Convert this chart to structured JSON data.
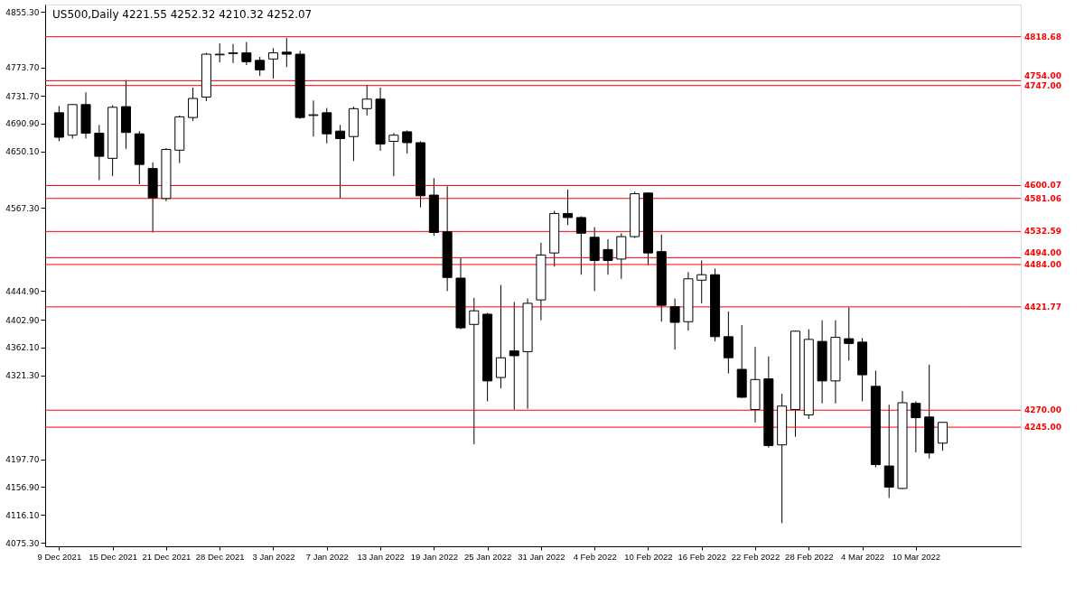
{
  "chart_data": {
    "type": "candlestick",
    "title": "US500,Daily  4221.55 4252.32 4210.32 4252.07",
    "categories": [
      "9 Dec 2021",
      null,
      null,
      null,
      "15 Dec 2021",
      null,
      null,
      null,
      "21 Dec 2021",
      null,
      null,
      null,
      "28 Dec 2021",
      null,
      null,
      null,
      "3 Jan 2022",
      null,
      null,
      null,
      "7 Jan 2022",
      null,
      null,
      null,
      "13 Jan 2022",
      null,
      null,
      null,
      "19 Jan 2022",
      null,
      null,
      null,
      "25 Jan 2022",
      null,
      null,
      null,
      "31 Jan 2022",
      null,
      null,
      null,
      "4 Feb 2022",
      null,
      null,
      null,
      "10 Feb 2022",
      null,
      null,
      null,
      "16 Feb 2022",
      null,
      null,
      null,
      "22 Feb 2022",
      null,
      null,
      null,
      "28 Feb 2022",
      null,
      null,
      null,
      "4 Mar 2022",
      null,
      null,
      null,
      "10 Mar 2022",
      null,
      null
    ],
    "ohlc": [
      [
        4707,
        4717,
        4665,
        4671
      ],
      [
        4674,
        4719,
        4669,
        4719
      ],
      [
        4719,
        4737,
        4669,
        4677
      ],
      [
        4677,
        4689,
        4608,
        4643
      ],
      [
        4640,
        4718,
        4614,
        4715
      ],
      [
        4716,
        4755,
        4654,
        4678
      ],
      [
        4676,
        4680,
        4602,
        4631
      ],
      [
        4625,
        4634,
        4531,
        4582
      ],
      [
        4581,
        4655,
        4577,
        4653
      ],
      [
        4652,
        4703,
        4633,
        4701
      ],
      [
        4700,
        4744,
        4695,
        4728
      ],
      [
        4730,
        4795,
        4724,
        4793
      ],
      [
        4792,
        4809,
        4781,
        4793
      ],
      [
        4794,
        4808,
        4780,
        4795
      ],
      [
        4795,
        4811,
        4777,
        4782
      ],
      [
        4784,
        4789,
        4761,
        4770
      ],
      [
        4786,
        4802,
        4757,
        4795
      ],
      [
        4796,
        4817,
        4774,
        4793
      ],
      [
        4793,
        4798,
        4698,
        4700
      ],
      [
        4703,
        4725,
        4672,
        4704
      ],
      [
        4707,
        4714,
        4662,
        4676
      ],
      [
        4680,
        4689,
        4581,
        4669
      ],
      [
        4672,
        4716,
        4636,
        4713
      ],
      [
        4713,
        4748,
        4703,
        4727
      ],
      [
        4727,
        4744,
        4651,
        4661
      ],
      [
        4665,
        4677,
        4614,
        4674
      ],
      [
        4679,
        4681,
        4647,
        4663
      ],
      [
        4663,
        4665,
        4568,
        4585
      ],
      [
        4586,
        4611,
        4526,
        4531
      ],
      [
        4532,
        4599,
        4445,
        4465
      ],
      [
        4464,
        4494,
        4389,
        4391
      ],
      [
        4396,
        4435,
        4220,
        4416
      ],
      [
        4411,
        4413,
        4283,
        4313
      ],
      [
        4318,
        4454,
        4302,
        4347
      ],
      [
        4357,
        4429,
        4271,
        4350
      ],
      [
        4356,
        4434,
        4272,
        4427
      ],
      [
        4432,
        4516,
        4402,
        4498
      ],
      [
        4501,
        4563,
        4481,
        4559
      ],
      [
        4559,
        4594,
        4542,
        4553
      ],
      [
        4553,
        4555,
        4469,
        4530
      ],
      [
        4524,
        4539,
        4445,
        4490
      ],
      [
        4506,
        4521,
        4469,
        4490
      ],
      [
        4492,
        4530,
        4463,
        4525
      ],
      [
        4525,
        4591,
        4523,
        4588
      ],
      [
        4589,
        4590,
        4483,
        4501
      ],
      [
        4503,
        4528,
        4400,
        4424
      ],
      [
        4422,
        4434,
        4359,
        4399
      ],
      [
        4400,
        4473,
        4387,
        4463
      ],
      [
        4461,
        4490,
        4427,
        4469
      ],
      [
        4469,
        4478,
        4371,
        4378
      ],
      [
        4378,
        4415,
        4324,
        4347
      ],
      [
        4330,
        4395,
        4288,
        4289
      ],
      [
        4271,
        4363,
        4252,
        4315
      ],
      [
        4316,
        4349,
        4215,
        4218
      ],
      [
        4219,
        4294,
        4104,
        4276
      ],
      [
        4271,
        4387,
        4231,
        4386
      ],
      [
        4263,
        4389,
        4257,
        4374
      ],
      [
        4371,
        4402,
        4280,
        4313
      ],
      [
        4313,
        4402,
        4280,
        4377
      ],
      [
        4375,
        4421,
        4343,
        4368
      ],
      [
        4370,
        4376,
        4283,
        4322
      ],
      [
        4305,
        4328,
        4186,
        4190
      ],
      [
        4188,
        4278,
        4141,
        4157
      ],
      [
        4155,
        4298,
        4154,
        4281
      ],
      [
        4280,
        4283,
        4208,
        4259
      ],
      [
        4260,
        4337,
        4199,
        4207
      ],
      [
        4221.55,
        4252.32,
        4210.32,
        4252.07
      ]
    ],
    "ylim": [
      4070,
      4866
    ],
    "yticks": [
      {
        "value": 4075.3,
        "label": "4075.30"
      },
      {
        "value": 4116.1,
        "label": "4116.10"
      },
      {
        "value": 4156.9,
        "label": "4156.90"
      },
      {
        "value": 4197.7,
        "label": "4197.70"
      },
      {
        "value": 4321.3,
        "label": "4321.30"
      },
      {
        "value": 4362.1,
        "label": "4362.10"
      },
      {
        "value": 4402.9,
        "label": "4402.90"
      },
      {
        "value": 4444.9,
        "label": "4444.90"
      },
      {
        "value": 4567.3,
        "label": "4567.30"
      },
      {
        "value": 4650.1,
        "label": "4650.10"
      },
      {
        "value": 4690.9,
        "label": "4690.90"
      },
      {
        "value": 4731.7,
        "label": "4731.70"
      },
      {
        "value": 4773.7,
        "label": "4773.70"
      },
      {
        "value": 4855.3,
        "label": "4855.30"
      }
    ],
    "ref_lines": [
      {
        "axis": "y",
        "value": 4818.68,
        "label": "4818.68",
        "color": "#ff0000"
      },
      {
        "axis": "y",
        "value": 4754.0,
        "label": "4754.00",
        "color": "#ff0000"
      },
      {
        "axis": "y",
        "value": 4747.0,
        "label": "4747.00",
        "color": "#ff0000"
      },
      {
        "axis": "y",
        "value": 4600.07,
        "label": "4600.07",
        "color": "#ff0000"
      },
      {
        "axis": "y",
        "value": 4581.06,
        "label": "4581.06",
        "color": "#ff0000"
      },
      {
        "axis": "y",
        "value": 4532.59,
        "label": "4532.59",
        "color": "#ff0000"
      },
      {
        "axis": "y",
        "value": 4494.0,
        "label": "4494.00",
        "color": "#ff0000"
      },
      {
        "axis": "y",
        "value": 4484.0,
        "label": "4484.00",
        "color": "#ff0000"
      },
      {
        "axis": "y",
        "value": 4421.77,
        "label": "4421.77",
        "color": "#ff0000"
      },
      {
        "axis": "y",
        "value": 4270.0,
        "label": "4270.00",
        "color": "#ff0000"
      },
      {
        "axis": "y",
        "value": 4245.0,
        "label": "4245.00",
        "color": "#ff0000"
      }
    ],
    "grid": false
  }
}
